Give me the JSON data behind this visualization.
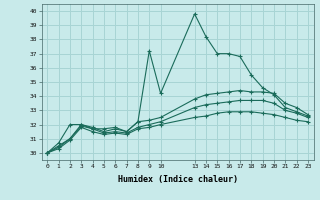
{
  "xlabel": "Humidex (Indice chaleur)",
  "bg_color": "#c8eaea",
  "grid_color": "#a8d4d4",
  "line_color": "#1a6b5a",
  "series": [
    {
      "x": [
        0,
        1,
        2,
        3,
        4,
        5,
        6,
        7,
        8,
        9,
        10,
        13,
        14,
        15,
        16,
        17,
        18,
        19,
        20,
        21,
        22,
        23
      ],
      "y": [
        30,
        30.7,
        32.0,
        32.0,
        31.7,
        31.7,
        31.8,
        31.5,
        32.2,
        37.2,
        34.2,
        39.8,
        38.2,
        37.0,
        37.0,
        36.8,
        35.5,
        34.6,
        34.1,
        33.2,
        32.9,
        32.6
      ]
    },
    {
      "x": [
        0,
        1,
        2,
        3,
        4,
        5,
        6,
        7,
        8,
        9,
        10,
        13,
        14,
        15,
        16,
        17,
        18,
        19,
        20,
        21,
        22,
        23
      ],
      "y": [
        30,
        30.5,
        31.0,
        32.0,
        31.8,
        31.5,
        31.7,
        31.5,
        32.2,
        32.3,
        32.5,
        33.8,
        34.1,
        34.2,
        34.3,
        34.4,
        34.3,
        34.3,
        34.2,
        33.5,
        33.2,
        32.7
      ]
    },
    {
      "x": [
        0,
        1,
        2,
        3,
        4,
        5,
        6,
        7,
        8,
        9,
        10,
        13,
        14,
        15,
        16,
        17,
        18,
        19,
        20,
        21,
        22,
        23
      ],
      "y": [
        30,
        30.4,
        31.0,
        31.9,
        31.7,
        31.4,
        31.5,
        31.4,
        31.8,
        32.0,
        32.2,
        33.2,
        33.4,
        33.5,
        33.6,
        33.7,
        33.7,
        33.7,
        33.5,
        33.0,
        32.8,
        32.5
      ]
    },
    {
      "x": [
        0,
        1,
        2,
        3,
        4,
        5,
        6,
        7,
        8,
        9,
        10,
        13,
        14,
        15,
        16,
        17,
        18,
        19,
        20,
        21,
        22,
        23
      ],
      "y": [
        30,
        30.3,
        30.9,
        31.8,
        31.5,
        31.3,
        31.4,
        31.3,
        31.7,
        31.8,
        32.0,
        32.5,
        32.6,
        32.8,
        32.9,
        32.9,
        32.9,
        32.8,
        32.7,
        32.5,
        32.3,
        32.2
      ]
    }
  ],
  "ylim": [
    29.5,
    40.5
  ],
  "yticks": [
    30,
    31,
    32,
    33,
    34,
    35,
    36,
    37,
    38,
    39,
    40
  ],
  "xticks": [
    0,
    1,
    2,
    3,
    4,
    5,
    6,
    7,
    8,
    9,
    10,
    13,
    14,
    15,
    16,
    17,
    18,
    19,
    20,
    21,
    22,
    23
  ],
  "marker": "+"
}
